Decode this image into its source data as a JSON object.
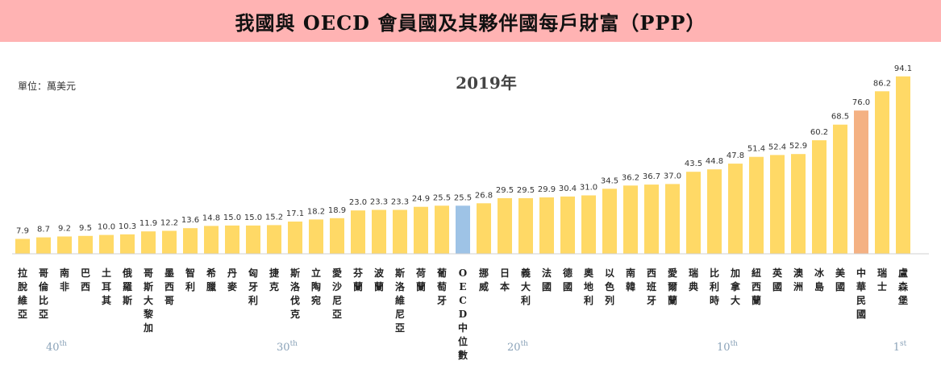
{
  "header": {
    "title": "我國與 OECD 會員國及其夥伴國每戶財富（PPP）"
  },
  "unit_label": "單位：萬美元",
  "chart_data": {
    "type": "bar",
    "title": "2019年",
    "xlabel": "",
    "ylabel": "",
    "ylim": [
      0,
      100
    ],
    "grid": false,
    "legend": "none",
    "categories": [
      "拉脫維亞",
      "哥倫比亞",
      "南非",
      "巴西",
      "土耳其",
      "俄羅斯",
      "哥斯大黎加",
      "墨西哥",
      "智利",
      "希臘",
      "丹麥",
      "匈牙利",
      "捷克",
      "斯洛伐克",
      "立陶宛",
      "愛沙尼亞",
      "芬蘭",
      "波蘭",
      "斯洛維尼亞",
      "荷蘭",
      "葡萄牙",
      "OECD中位數",
      "挪威",
      "日本",
      "義大利",
      "法國",
      "德國",
      "奧地利",
      "以色列",
      "南韓",
      "西班牙",
      "愛爾蘭",
      "瑞典",
      "比利時",
      "加拿大",
      "紐西蘭",
      "英國",
      "澳洲",
      "冰島",
      "美國",
      "中華民國",
      "瑞士",
      "盧森堡"
    ],
    "values": [
      7.9,
      8.7,
      9.2,
      9.5,
      10.0,
      10.3,
      11.9,
      12.2,
      13.6,
      14.8,
      15.0,
      15.0,
      15.2,
      17.1,
      18.2,
      18.9,
      23.0,
      23.3,
      23.3,
      24.9,
      25.5,
      25.5,
      26.8,
      29.5,
      29.5,
      29.9,
      30.4,
      31.0,
      34.5,
      36.2,
      36.7,
      37.0,
      43.5,
      44.8,
      47.8,
      51.4,
      52.4,
      52.9,
      60.2,
      68.5,
      76.0,
      86.2,
      94.1
    ],
    "value_labels": [
      "7.9",
      "8.7",
      "9.2",
      "9.5",
      "10.0",
      "10.3",
      "11.9",
      "12.2",
      "13.6",
      "14.8",
      "15.0",
      "15.0",
      "15.2",
      "17.1",
      "18.2",
      "18.9",
      "23.0",
      "23.3",
      "23.3",
      "24.9",
      "25.5",
      "25.5",
      "26.8",
      "29.5",
      "29.5",
      "29.9",
      "30.4",
      "31.0",
      "34.5",
      "36.2",
      "36.7",
      "37.0",
      "43.5",
      "44.8",
      "47.8",
      "51.4",
      "52.4",
      "52.9",
      "60.2",
      "68.5",
      "76.0",
      "86.2",
      "94.1"
    ],
    "highlights": {
      "OECD中位數": "#9ec3e6",
      "中華民國": "#f4b183"
    },
    "default_color": "#ffd966",
    "rank_markers": [
      {
        "after_index": 1,
        "num": "40",
        "sup": "th"
      },
      {
        "after_index": 12,
        "num": "30",
        "sup": "th"
      },
      {
        "after_index": 23,
        "num": "20",
        "sup": "th"
      },
      {
        "after_index": 33,
        "num": "10",
        "sup": "th"
      },
      {
        "after_index": 42,
        "num": "1",
        "sup": "st"
      }
    ]
  }
}
